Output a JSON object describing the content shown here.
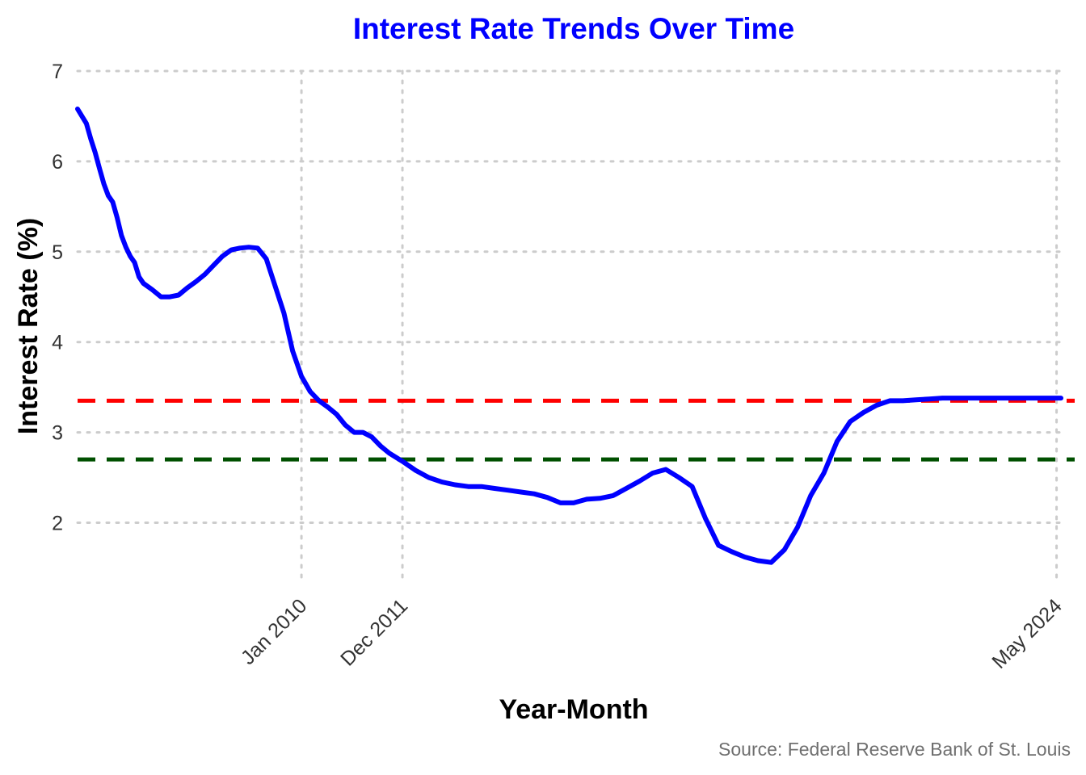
{
  "colors": {
    "series": "#0000ff",
    "title": "#0000ff",
    "upper_reference": "#ff0000",
    "lower_reference": "#005000",
    "grid": "#cccccc"
  },
  "chart_data": {
    "type": "line",
    "title": "Interest Rate Trends Over Time",
    "xlabel": "Year-Month",
    "ylabel": "Interest Rate (%)",
    "caption": "Source: Federal Reserve Bank of St. Louis",
    "xlim": [
      "2005-10",
      "2024-06"
    ],
    "ylim": [
      1.2,
      7
    ],
    "y_ticks": [
      2,
      3,
      4,
      5,
      6,
      7
    ],
    "x_ticks": [
      {
        "date": "2010-01",
        "label": "Jan 2010"
      },
      {
        "date": "2011-12",
        "label": "Dec 2011"
      },
      {
        "date": "2024-05",
        "label": "May 2024"
      }
    ],
    "grid": "dotted",
    "reference_lines": [
      {
        "y": 3.35,
        "color": "#ff0000",
        "style": "dashed"
      },
      {
        "y": 2.7,
        "color": "#005000",
        "style": "dashed"
      }
    ],
    "series": [
      {
        "color": "#0000ff",
        "x": [
          "2005-10",
          "2005-11",
          "2005-12",
          "2006-01",
          "2006-02",
          "2006-03",
          "2006-04",
          "2006-05",
          "2006-06",
          "2006-07",
          "2006-08",
          "2006-09",
          "2006-10",
          "2006-11",
          "2006-12",
          "2007-01",
          "2007-03",
          "2007-05",
          "2007-07",
          "2007-09",
          "2007-11",
          "2008-01",
          "2008-03",
          "2008-05",
          "2008-07",
          "2008-09",
          "2008-11",
          "2009-01",
          "2009-03",
          "2009-05",
          "2009-07",
          "2009-09",
          "2009-11",
          "2010-01",
          "2010-03",
          "2010-05",
          "2010-07",
          "2010-09",
          "2010-11",
          "2011-01",
          "2011-03",
          "2011-05",
          "2011-07",
          "2011-09",
          "2011-12",
          "2012-03",
          "2012-06",
          "2012-09",
          "2012-12",
          "2013-03",
          "2013-06",
          "2013-09",
          "2013-12",
          "2014-03",
          "2014-06",
          "2014-09",
          "2014-12",
          "2015-03",
          "2015-06",
          "2015-09",
          "2015-12",
          "2016-03",
          "2016-06",
          "2016-09",
          "2016-12",
          "2017-03",
          "2017-06",
          "2017-09",
          "2017-12",
          "2018-03",
          "2018-06",
          "2018-09",
          "2018-12",
          "2019-03",
          "2019-06",
          "2019-09",
          "2019-12",
          "2020-03",
          "2020-06",
          "2020-09",
          "2020-12",
          "2021-03",
          "2021-06",
          "2021-09",
          "2021-12",
          "2022-03",
          "2022-06",
          "2022-09",
          "2022-12",
          "2023-03",
          "2023-06",
          "2023-09",
          "2023-12",
          "2024-03",
          "2024-06"
        ],
        "y": [
          6.58,
          6.5,
          6.42,
          6.25,
          6.1,
          5.92,
          5.75,
          5.62,
          5.55,
          5.38,
          5.18,
          5.05,
          4.95,
          4.88,
          4.72,
          4.65,
          4.58,
          4.5,
          4.5,
          4.52,
          4.6,
          4.67,
          4.75,
          4.85,
          4.95,
          5.02,
          5.04,
          5.05,
          5.04,
          4.92,
          4.62,
          4.32,
          3.9,
          3.62,
          3.45,
          3.35,
          3.28,
          3.2,
          3.08,
          3.0,
          3.0,
          2.95,
          2.85,
          2.77,
          2.68,
          2.58,
          2.5,
          2.45,
          2.42,
          2.4,
          2.4,
          2.38,
          2.36,
          2.34,
          2.32,
          2.28,
          2.22,
          2.22,
          2.26,
          2.27,
          2.3,
          2.38,
          2.46,
          2.55,
          2.59,
          2.5,
          2.4,
          2.05,
          1.75,
          1.68,
          1.62,
          1.58,
          1.56,
          1.7,
          1.95,
          2.3,
          2.55,
          2.9,
          3.12,
          3.22,
          3.3,
          3.35,
          3.35,
          3.36,
          3.37,
          3.38,
          3.38,
          3.38,
          3.38,
          3.38,
          3.38,
          3.38,
          3.38,
          3.38,
          3.38
        ]
      }
    ]
  }
}
